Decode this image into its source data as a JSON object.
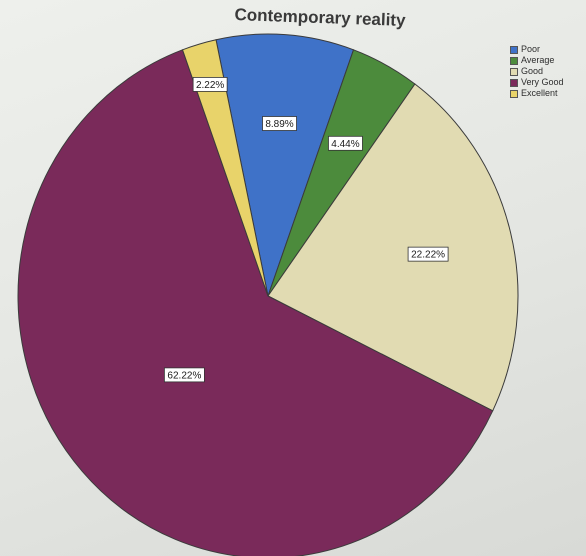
{
  "chart_data": {
    "type": "pie",
    "title": "Contemporary reality",
    "legend_position": "top-right",
    "categories": [
      "Poor",
      "Average",
      "Good",
      "Very Good",
      "Excellent"
    ],
    "values": [
      8.89,
      4.44,
      22.22,
      62.22,
      2.22
    ],
    "labels": [
      "8.89%",
      "4.44%",
      "22.22%",
      "62.22%",
      "2.22%"
    ],
    "colors": [
      "#3f72c8",
      "#4c8b3c",
      "#e1dbb2",
      "#7a2a5a",
      "#e8d36a"
    ]
  }
}
